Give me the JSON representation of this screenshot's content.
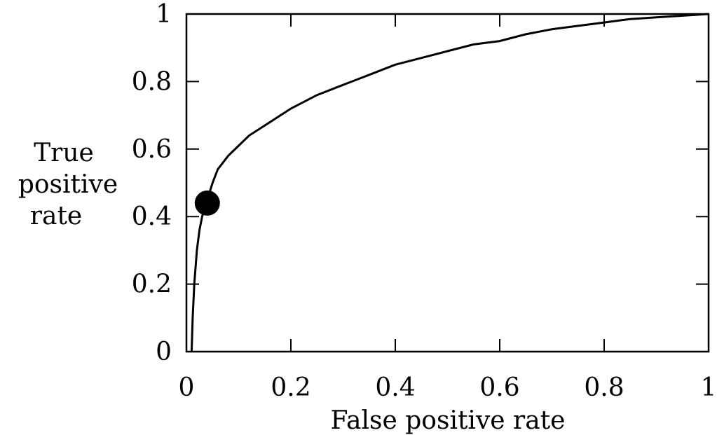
{
  "chart_data": {
    "type": "line",
    "xlabel": "False positive rate",
    "ylabel_lines": [
      "True",
      "positive",
      "rate"
    ],
    "xlim": [
      0,
      1
    ],
    "ylim": [
      0,
      1
    ],
    "xticks": [
      "0",
      "0.2",
      "0.4",
      "0.6",
      "0.8",
      "1"
    ],
    "yticks": [
      "0",
      "0.2",
      "0.4",
      "0.6",
      "0.8",
      "1"
    ],
    "grid": false,
    "series": [
      {
        "x": [
          0.01,
          0.012,
          0.015,
          0.02,
          0.025,
          0.03,
          0.04,
          0.05,
          0.06,
          0.08,
          0.1,
          0.12,
          0.15,
          0.2,
          0.25,
          0.3,
          0.35,
          0.4,
          0.45,
          0.5,
          0.55,
          0.6,
          0.65,
          0.7,
          0.75,
          0.8,
          0.85,
          0.9,
          0.95,
          1.0
        ],
        "y": [
          0.0,
          0.1,
          0.2,
          0.3,
          0.36,
          0.4,
          0.45,
          0.5,
          0.54,
          0.58,
          0.61,
          0.64,
          0.67,
          0.72,
          0.76,
          0.79,
          0.82,
          0.85,
          0.87,
          0.89,
          0.91,
          0.92,
          0.94,
          0.955,
          0.965,
          0.975,
          0.985,
          0.99,
          0.995,
          1.0
        ]
      }
    ],
    "highlight_point": {
      "x": 0.04,
      "y": 0.44
    }
  },
  "colors": {
    "line": "#000000",
    "frame": "#000000",
    "marker": "#000000"
  }
}
